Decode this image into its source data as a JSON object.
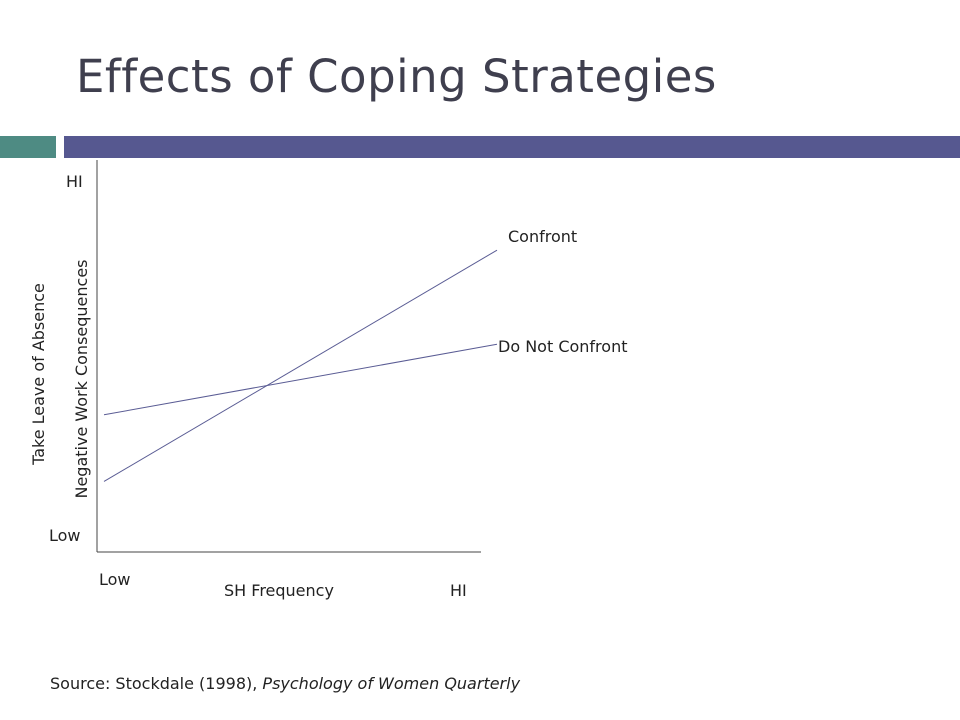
{
  "slide": {
    "title": "Effects of Coping Strategies",
    "accent_colors": {
      "teal": "#4e8b83",
      "navy": "#565890",
      "line": "#5a5c94"
    }
  },
  "chart_data": {
    "type": "line",
    "xlabel": "SH Frequency",
    "ylabel_outer": "Take Leave of Absence",
    "ylabel_inner": "Negative Work Consequences",
    "x_tick_labels": [
      "Low",
      "HI"
    ],
    "y_tick_labels": [
      "Low",
      "HI"
    ],
    "x": [
      0,
      1
    ],
    "xlim": [
      0,
      1
    ],
    "ylim": [
      0,
      1
    ],
    "grid": false,
    "series": [
      {
        "name": "Confront",
        "values": [
          0.18,
          0.77
        ]
      },
      {
        "name": "Do Not Confront",
        "values": [
          0.35,
          0.53
        ]
      }
    ]
  },
  "source": {
    "prefix": "Source: Stockdale (1998), ",
    "journal": "Psychology of  Women Quarterly"
  }
}
